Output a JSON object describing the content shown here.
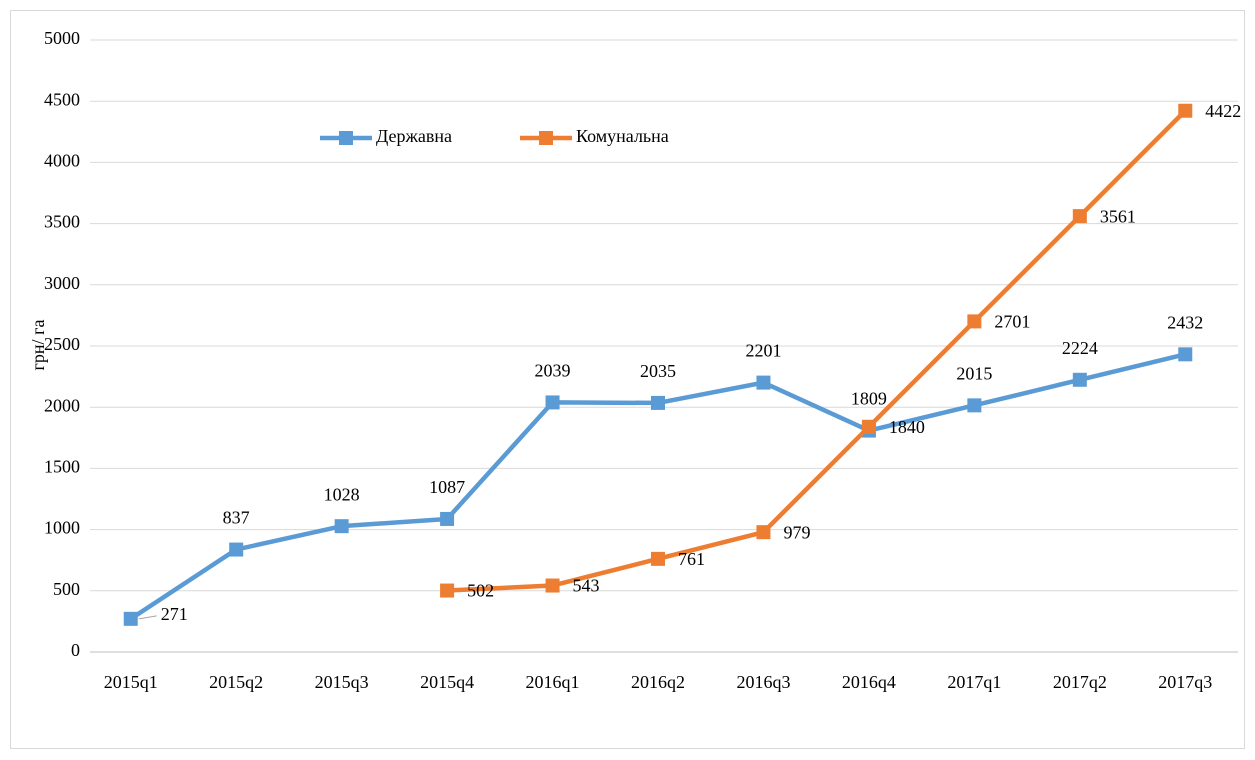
{
  "chart_data": {
    "type": "line",
    "y_label": "грн/ га",
    "categories": [
      "2015q1",
      "2015q2",
      "2015q3",
      "2015q4",
      "2016q1",
      "2016q2",
      "2016q3",
      "2016q4",
      "2017q1",
      "2017q2",
      "2017q3"
    ],
    "series": [
      {
        "name": "Державна",
        "color": "#5b9bd5",
        "values": [
          271,
          837,
          1028,
          1087,
          2039,
          2035,
          2201,
          1809,
          2015,
          2224,
          2432
        ]
      },
      {
        "name": "Комунальна",
        "color": "#ed7d31",
        "values": [
          null,
          null,
          null,
          502,
          543,
          761,
          979,
          1840,
          2701,
          3561,
          4422
        ]
      }
    ],
    "ylim": [
      0,
      5000
    ],
    "yticks": [
      0,
      500,
      1000,
      1500,
      2000,
      2500,
      3000,
      3500,
      4000,
      4500,
      5000
    ],
    "grid": true,
    "legend": "top"
  }
}
